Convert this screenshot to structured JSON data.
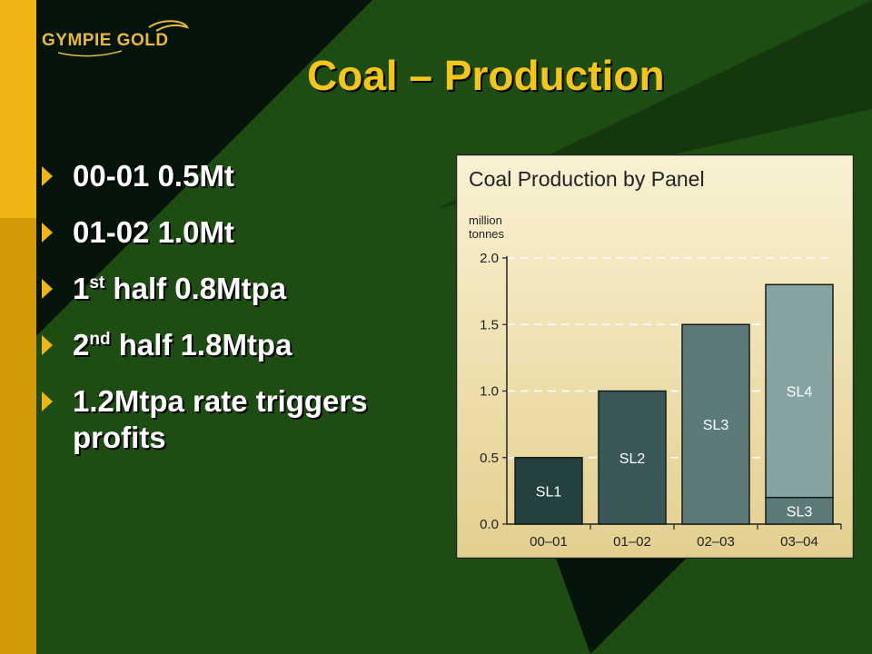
{
  "logo": {
    "text": "GYMPIE GOLD"
  },
  "slide": {
    "title": "Coal – Production",
    "bullets": [
      {
        "text": "00-01 0.5Mt"
      },
      {
        "text": "01-02 1.0Mt"
      },
      {
        "prefix": "1",
        "sup": "st",
        "rest": " half 0.8Mtpa"
      },
      {
        "prefix": "2",
        "sup": "nd",
        "rest": " half 1.8Mtpa"
      },
      {
        "text": "1.2Mtpa rate triggers profits"
      }
    ]
  },
  "colors": {
    "background": "#1d4d12",
    "title": "#f5c518",
    "accent": "#f0b515",
    "chart_bg_top": "#f9f1d2",
    "chart_bg_bottom": "#e3d08f"
  },
  "chart_data": {
    "type": "bar",
    "stacked": true,
    "title": "Coal Production by Panel",
    "ylabel": "million tonnes",
    "ylim": [
      0,
      2.0
    ],
    "yticks": [
      0.0,
      0.5,
      1.0,
      1.5,
      2.0
    ],
    "ytick_labels": [
      "0.0",
      "0.5",
      "1.0",
      "1.5",
      "2.0"
    ],
    "grid": true,
    "categories": [
      "00–01",
      "01–02",
      "02–03",
      "03–04"
    ],
    "bars": [
      {
        "category": "00–01",
        "segments": [
          {
            "label": "SL1",
            "value": 0.5,
            "color": "#24413f"
          }
        ]
      },
      {
        "category": "01–02",
        "segments": [
          {
            "label": "SL2",
            "value": 1.0,
            "color": "#3a5857"
          }
        ]
      },
      {
        "category": "02–03",
        "segments": [
          {
            "label": "SL3",
            "value": 1.5,
            "color": "#5b7a78"
          }
        ]
      },
      {
        "category": "03–04",
        "segments": [
          {
            "label": "SL3",
            "value": 0.2,
            "color": "#5b7a78"
          },
          {
            "label": "SL4",
            "value": 1.6,
            "color": "#86a3a2"
          }
        ]
      }
    ]
  }
}
